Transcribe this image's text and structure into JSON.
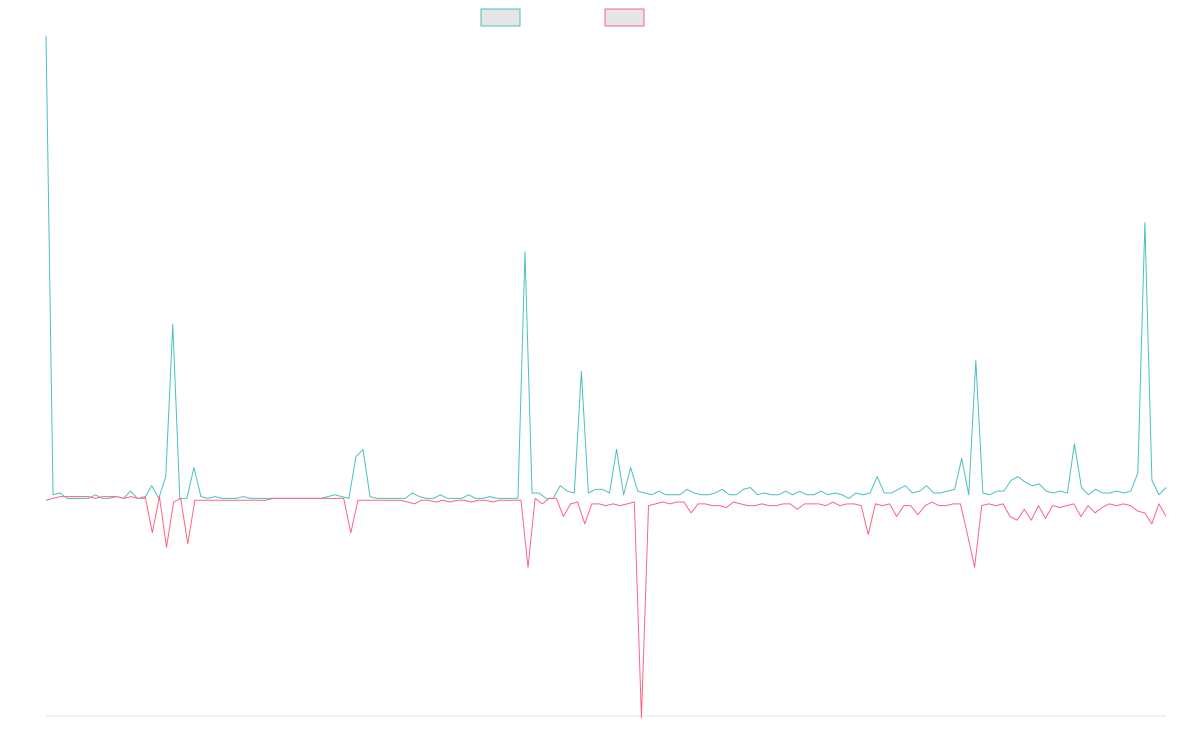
{
  "chart_data": {
    "type": "line",
    "title": "",
    "xlabel": "",
    "ylabel": "",
    "grid": false,
    "legend": "top-center",
    "ylim": [
      -120,
      255
    ],
    "series": [
      {
        "color": "#4bc0c0",
        "fill": "#e6e6e6",
        "values": [
          255,
          2,
          3,
          0,
          0,
          0,
          0,
          2,
          0,
          0,
          1,
          0,
          4,
          0,
          0,
          7,
          0,
          12,
          96,
          0,
          0,
          17,
          1,
          0,
          1,
          0,
          0,
          0,
          1,
          0,
          0,
          0,
          0,
          0,
          0,
          0,
          0,
          0,
          0,
          0,
          1,
          2,
          1,
          0,
          23,
          27,
          1,
          0,
          0,
          0,
          0,
          0,
          3,
          1,
          0,
          0,
          2,
          0,
          0,
          0,
          2,
          0,
          0,
          1,
          0,
          0,
          0,
          0,
          136,
          3,
          3,
          0,
          0,
          7,
          4,
          3,
          70,
          3,
          5,
          5,
          3,
          27,
          2,
          17,
          4,
          3,
          2,
          4,
          2,
          2,
          2,
          5,
          3,
          2,
          2,
          3,
          5,
          2,
          2,
          5,
          6,
          2,
          3,
          2,
          2,
          4,
          2,
          4,
          2,
          2,
          4,
          2,
          3,
          2,
          0,
          3,
          2,
          3,
          12,
          3,
          3,
          5,
          7,
          3,
          4,
          7,
          3,
          3,
          4,
          5,
          22,
          2,
          76,
          3,
          2,
          4,
          4,
          10,
          12,
          9,
          7,
          8,
          4,
          3,
          4,
          3,
          30,
          6,
          2,
          5,
          3,
          3,
          4,
          3,
          4,
          14,
          152,
          10,
          2,
          6
        ]
      },
      {
        "color": "#ff6384",
        "fill": "#e6e6e6",
        "values": [
          -1,
          0,
          1,
          1,
          1,
          1,
          1,
          0,
          1,
          1,
          1,
          0,
          1,
          0,
          1,
          -19,
          1,
          -27,
          -2,
          0,
          -25,
          -1,
          -1,
          -1,
          -1,
          -1,
          -1,
          -1,
          -1,
          -1,
          -1,
          -1,
          0,
          0,
          0,
          0,
          0,
          0,
          0,
          0,
          0,
          0,
          0,
          -19,
          -1,
          -1,
          -1,
          -1,
          -1,
          -1,
          -1,
          -2,
          -3,
          -1,
          -1,
          -2,
          -1,
          -2,
          -1,
          -1,
          -2,
          -1,
          -1,
          -2,
          -1,
          -1,
          -1,
          -1,
          -38,
          0,
          -3,
          0,
          0,
          -10,
          -3,
          -2,
          -14,
          -3,
          -3,
          -4,
          -3,
          -4,
          -3,
          -2,
          -121,
          -4,
          -3,
          -2,
          -3,
          -2,
          -2,
          -8,
          -3,
          -3,
          -4,
          -4,
          -5,
          -2,
          -3,
          -4,
          -4,
          -3,
          -4,
          -4,
          -3,
          -3,
          -6,
          -3,
          -3,
          -3,
          -4,
          -2,
          -4,
          -3,
          -3,
          -4,
          -20,
          -3,
          -4,
          -3,
          -10,
          -4,
          -4,
          -9,
          -4,
          -2,
          -4,
          -4,
          -3,
          -3,
          -20,
          -38,
          -4,
          -3,
          -4,
          -3,
          -10,
          -12,
          -6,
          -12,
          -4,
          -11,
          -4,
          -5,
          -4,
          -3,
          -10,
          -4,
          -8,
          -5,
          -3,
          -4,
          -3,
          -4,
          -7,
          -8,
          -14,
          -3,
          -10
        ]
      }
    ]
  }
}
